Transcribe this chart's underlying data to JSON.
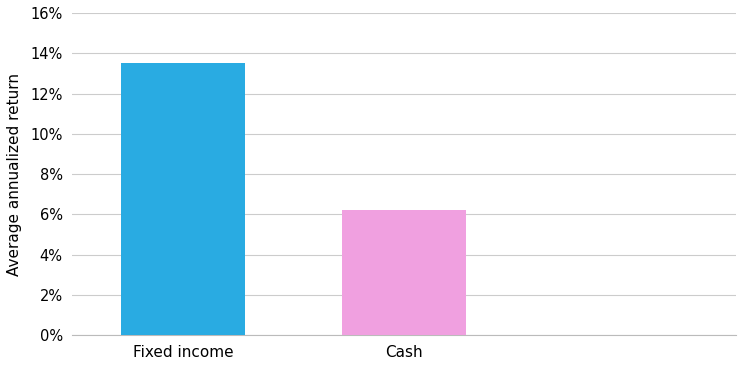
{
  "categories": [
    "Fixed income",
    "Cash"
  ],
  "values": [
    0.135,
    0.062
  ],
  "bar_colors": [
    "#29ABE2",
    "#F0A0E0"
  ],
  "ylabel": "Average annualized return",
  "ylim": [
    0,
    0.16
  ],
  "yticks": [
    0.0,
    0.02,
    0.04,
    0.06,
    0.08,
    0.1,
    0.12,
    0.14,
    0.16
  ],
  "bar_width": 0.28,
  "x_positions": [
    0.25,
    0.75
  ],
  "xlim": [
    0.0,
    1.5
  ],
  "background_color": "#ffffff",
  "grid_color": "#cccccc",
  "ylabel_fontsize": 11,
  "tick_fontsize": 10.5,
  "xlabel_fontsize": 11
}
